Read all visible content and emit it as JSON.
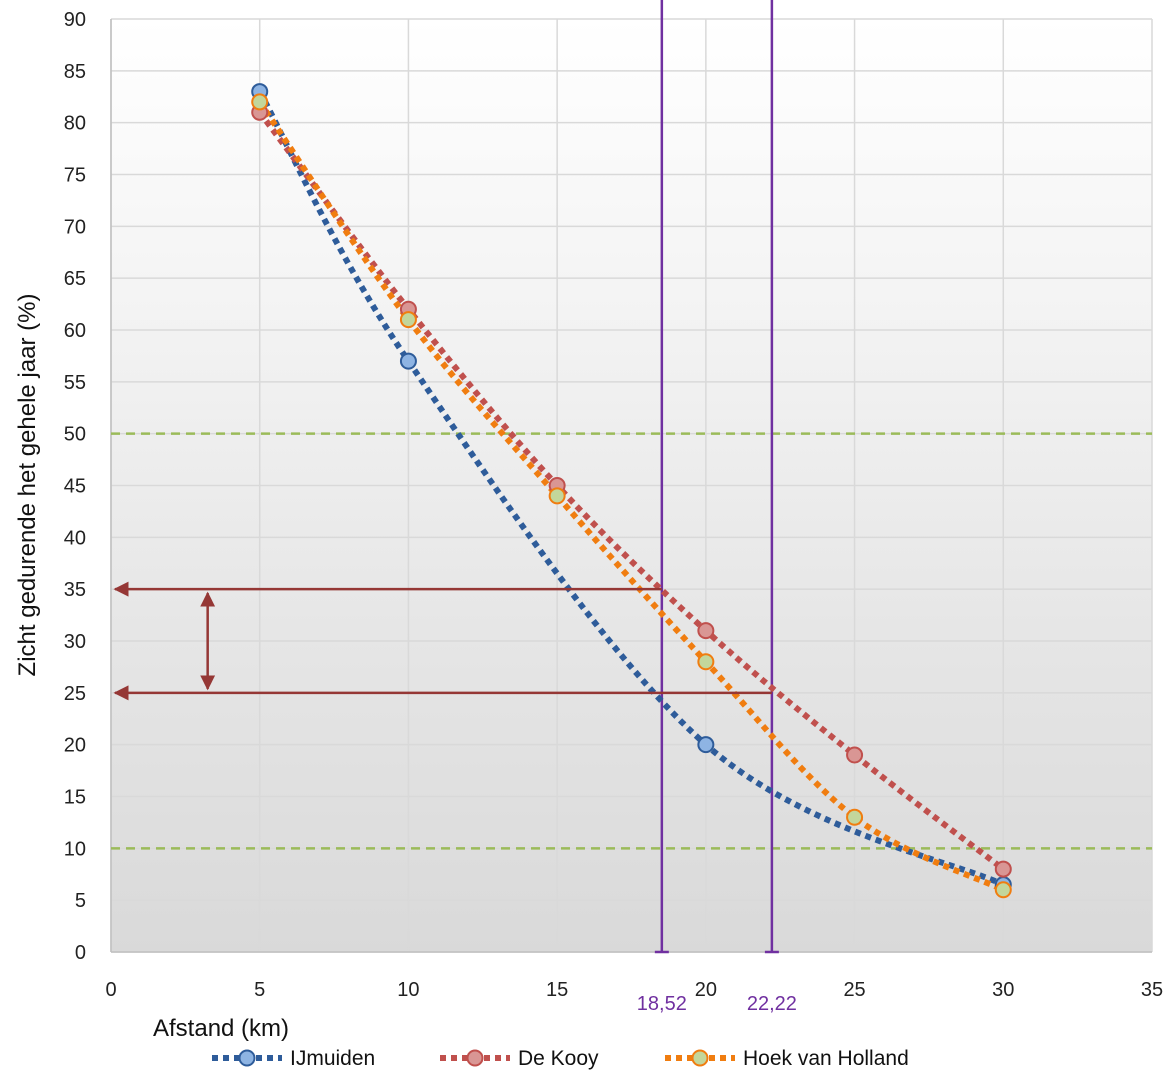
{
  "chart_data": {
    "type": "line",
    "title": "",
    "xlabel": "Afstand (km)",
    "ylabel": "Zicht gedurende het gehele jaar (%)",
    "xlim": [
      0,
      35
    ],
    "ylim": [
      0,
      90
    ],
    "x_ticks": [
      0,
      5,
      10,
      15,
      20,
      25,
      30,
      35
    ],
    "y_ticks": [
      0,
      5,
      10,
      15,
      20,
      25,
      30,
      35,
      40,
      45,
      50,
      55,
      60,
      65,
      70,
      75,
      80,
      85,
      90
    ],
    "grid": true,
    "legend_position": "bottom",
    "series": [
      {
        "name": "IJmuiden",
        "color": "#2e5c9a",
        "marker_fill": "#8eb4e3",
        "points": [
          [
            5,
            83
          ],
          [
            10,
            57
          ],
          [
            20,
            20
          ],
          [
            30,
            6.5
          ]
        ]
      },
      {
        "name": "De Kooy",
        "color": "#c0504d",
        "marker_fill": "#d99694",
        "points": [
          [
            5,
            81
          ],
          [
            10,
            62
          ],
          [
            15,
            45
          ],
          [
            20,
            31
          ],
          [
            25,
            19
          ],
          [
            30,
            8
          ]
        ]
      },
      {
        "name": "Hoek van Holland",
        "color": "#f07d10",
        "marker_fill": "#c3d69b",
        "points": [
          [
            5,
            82
          ],
          [
            10,
            61
          ],
          [
            15,
            44
          ],
          [
            20,
            28
          ],
          [
            25,
            13
          ],
          [
            30,
            6
          ]
        ]
      }
    ],
    "reference_lines": {
      "horizontal": [
        {
          "y": 50,
          "color": "#9bbb59",
          "style": "dashed"
        },
        {
          "y": 10,
          "color": "#9bbb59",
          "style": "dashed"
        }
      ],
      "vertical": [
        {
          "x": 18.52,
          "label": "18,52",
          "color": "#7030a0"
        },
        {
          "x": 22.22,
          "label": "22,22",
          "color": "#7030a0"
        }
      ]
    },
    "annotations": {
      "color": "#953735",
      "arrows": [
        {
          "from": [
            18.52,
            35
          ],
          "to": [
            0,
            35
          ]
        },
        {
          "from": [
            22.22,
            25
          ],
          "to": [
            0,
            25
          ]
        }
      ],
      "range_arrow": {
        "x": 3.25,
        "y1": 35,
        "y2": 25
      }
    }
  }
}
